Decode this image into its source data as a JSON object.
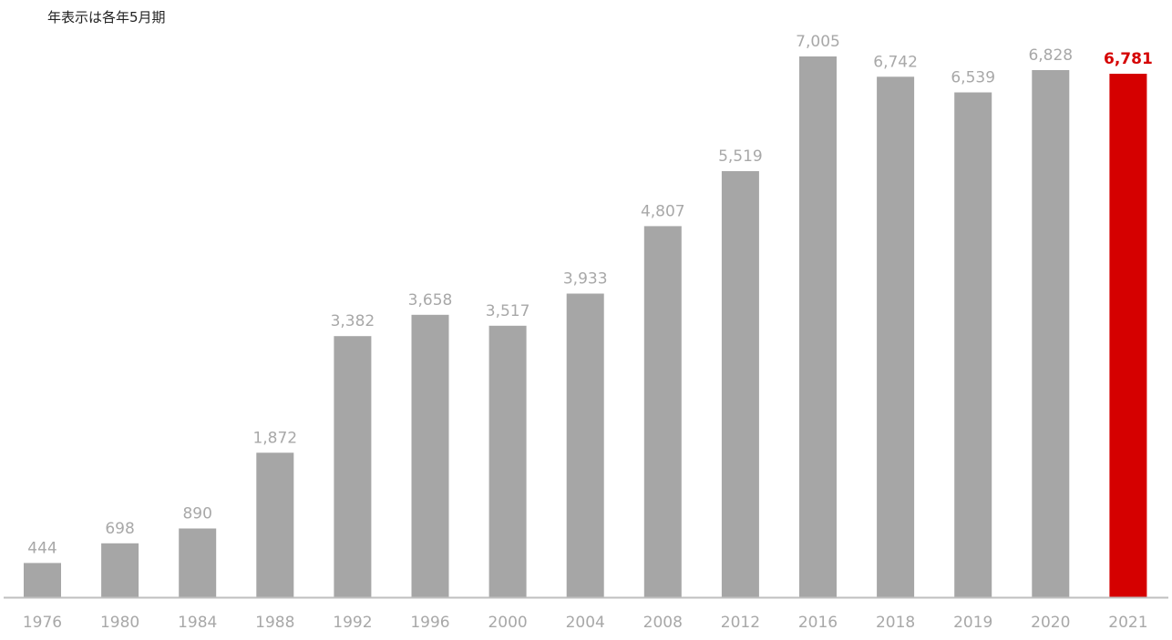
{
  "note": "年表示は各年5月期",
  "chart_data": {
    "type": "bar",
    "categories": [
      "1976",
      "1980",
      "1984",
      "1988",
      "1992",
      "1996",
      "2000",
      "2004",
      "2008",
      "2012",
      "2016",
      "2018",
      "2019",
      "2020",
      "2021"
    ],
    "values": [
      444,
      698,
      890,
      1872,
      3382,
      3658,
      3517,
      3933,
      4807,
      5519,
      7005,
      6742,
      6539,
      6828,
      6781
    ],
    "value_labels": [
      "444",
      "698",
      "890",
      "1,872",
      "3,382",
      "3,658",
      "3,517",
      "3,933",
      "4,807",
      "5,519",
      "7,005",
      "6,742",
      "6,539",
      "6,828",
      "6,781"
    ],
    "highlight_index": 14,
    "colors": {
      "bar": "#a6a6a6",
      "highlight": "#d50000",
      "label": "#a8a8a8",
      "axis": "#bfbfbf"
    },
    "ylim": [
      0,
      7005
    ],
    "grid": false,
    "legend": false
  }
}
